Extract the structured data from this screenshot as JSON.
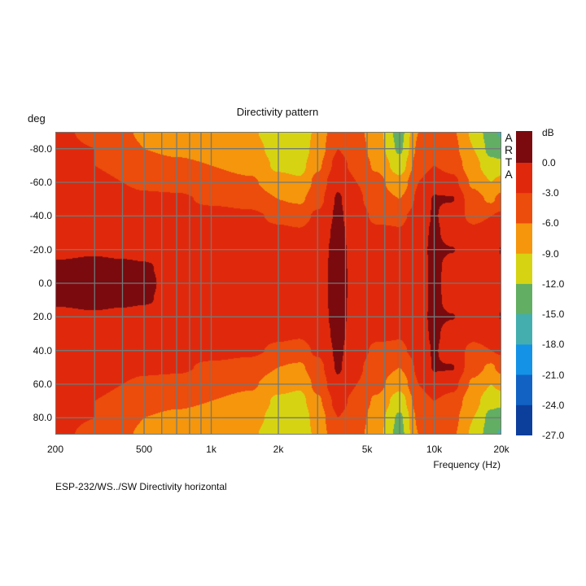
{
  "chart_data": {
    "type": "heatmap",
    "title": "Directivity pattern",
    "ylabel": "deg",
    "xlabel": "Frequency (Hz)",
    "x_scale": "log",
    "xlim": [
      200,
      20000
    ],
    "ylim": [
      -90,
      90
    ],
    "grid": true,
    "x_ticks": [
      {
        "v": 200,
        "label": "200"
      },
      {
        "v": 500,
        "label": "500"
      },
      {
        "v": 1000,
        "label": "1k"
      },
      {
        "v": 2000,
        "label": "2k"
      },
      {
        "v": 5000,
        "label": "5k"
      },
      {
        "v": 10000,
        "label": "10k"
      },
      {
        "v": 20000,
        "label": "20k"
      }
    ],
    "y_ticks": [
      {
        "v": -80,
        "label": "-80.0"
      },
      {
        "v": -60,
        "label": "-60.0"
      },
      {
        "v": -40,
        "label": "-40.0"
      },
      {
        "v": -20,
        "label": "-20.0"
      },
      {
        "v": 0,
        "label": "0.0"
      },
      {
        "v": 20,
        "label": "20.0"
      },
      {
        "v": 40,
        "label": "40.0"
      },
      {
        "v": 60,
        "label": "60.0"
      },
      {
        "v": 80,
        "label": "80.0"
      }
    ],
    "colorbar": {
      "unit": "dB",
      "levels": [
        {
          "v": 0,
          "label": "0.0"
        },
        {
          "v": -3,
          "label": "-3.0"
        },
        {
          "v": -6,
          "label": "-6.0"
        },
        {
          "v": -9,
          "label": "-9.0"
        },
        {
          "v": -12,
          "label": "-12.0"
        },
        {
          "v": -15,
          "label": "-15.0"
        },
        {
          "v": -18,
          "label": "-18.0"
        },
        {
          "v": -21,
          "label": "-21.0"
        },
        {
          "v": -24,
          "label": "-24.0"
        },
        {
          "v": -27,
          "label": "-27.0"
        }
      ],
      "colors": [
        "#7a0a0e",
        "#e0290c",
        "#ec4c0c",
        "#f5960c",
        "#d6d412",
        "#62ae62",
        "#44aeae",
        "#1492e6",
        "#1262c4",
        "#0c3e9c"
      ]
    },
    "frequencies": [
      200,
      300,
      400,
      500,
      700,
      1000,
      1500,
      2000,
      2500,
      3000,
      3700,
      4500,
      5500,
      7000,
      8500,
      10000,
      12000,
      15000,
      18000,
      20000
    ],
    "angles_abs": [
      0,
      10,
      20,
      30,
      40,
      50,
      60,
      70,
      80,
      90
    ],
    "symmetric": true,
    "values_db": [
      [
        1,
        1.5,
        1,
        0.5,
        -1,
        -1.5,
        -1.5,
        -1.5,
        -1.5,
        -1,
        1,
        -1,
        -1.5,
        -2,
        -1,
        0.5,
        -1,
        -1.5,
        -1,
        -0.5
      ],
      [
        0.5,
        1,
        0.7,
        0.3,
        -1.2,
        -1.5,
        -1.5,
        -1.6,
        -1.6,
        -1.1,
        1,
        -1.1,
        -1.6,
        -2,
        -1,
        0.5,
        -0.8,
        -1.5,
        -1,
        -0.3
      ],
      [
        -1,
        -0.5,
        -1,
        -1.2,
        -1.5,
        -1.7,
        -1.8,
        -2,
        -2,
        -1.3,
        1,
        -1.3,
        -1.8,
        -2.2,
        -0.8,
        0.5,
        0.1,
        -1.5,
        -1,
        0.1
      ],
      [
        -1.5,
        -1.5,
        -1.7,
        -1.8,
        -1.8,
        -2,
        -2.2,
        -2.5,
        -2.7,
        -1.8,
        0.8,
        -1.6,
        -2.5,
        -2.8,
        -1.2,
        0.5,
        -1.2,
        -2.5,
        -2,
        -1.5
      ],
      [
        -2,
        -2,
        -2,
        -2,
        -2,
        -2,
        -2.5,
        -3.5,
        -4,
        -2.5,
        0.5,
        -2,
        -3.5,
        -3.5,
        -2,
        0.3,
        -2,
        -3.5,
        -3,
        -2.5
      ],
      [
        -2,
        -2,
        -2.2,
        -2.5,
        -2.5,
        -3.5,
        -4,
        -6,
        -6.5,
        -4,
        0.3,
        -2.5,
        -4.5,
        -6,
        -2.5,
        0.2,
        0.2,
        -5,
        -6.5,
        -5
      ],
      [
        -2,
        -2.5,
        -3,
        -3.5,
        -4,
        -4.5,
        -5.5,
        -8,
        -8.5,
        -5,
        -0.5,
        -3,
        -5,
        -8,
        -3,
        -1,
        -2,
        -6.5,
        -9,
        -8
      ],
      [
        -2.5,
        -3,
        -3.5,
        -5,
        -5.5,
        -6,
        -7,
        -9.5,
        -10,
        -6.5,
        -2,
        -4,
        -6.5,
        -10.5,
        -4.5,
        -3,
        -4,
        -8,
        -11,
        -11
      ],
      [
        -2.5,
        -3,
        -5,
        -6,
        -6.5,
        -7,
        -8,
        -10,
        -11,
        -7.5,
        -3,
        -4.5,
        -7.5,
        -12.5,
        -5.5,
        -4,
        -5,
        -9,
        -13,
        -14
      ],
      [
        -2.5,
        -3.5,
        -5.5,
        -6.5,
        -7,
        -7.5,
        -8.5,
        -11,
        -11.5,
        -8,
        -3.5,
        -5,
        -8,
        -13,
        -6,
        -4.5,
        -5.5,
        -9.5,
        -14,
        -15.5
      ]
    ]
  },
  "watermark": "ARTA",
  "footer": "ESP-232/WS../SW   Directivity horizontal"
}
